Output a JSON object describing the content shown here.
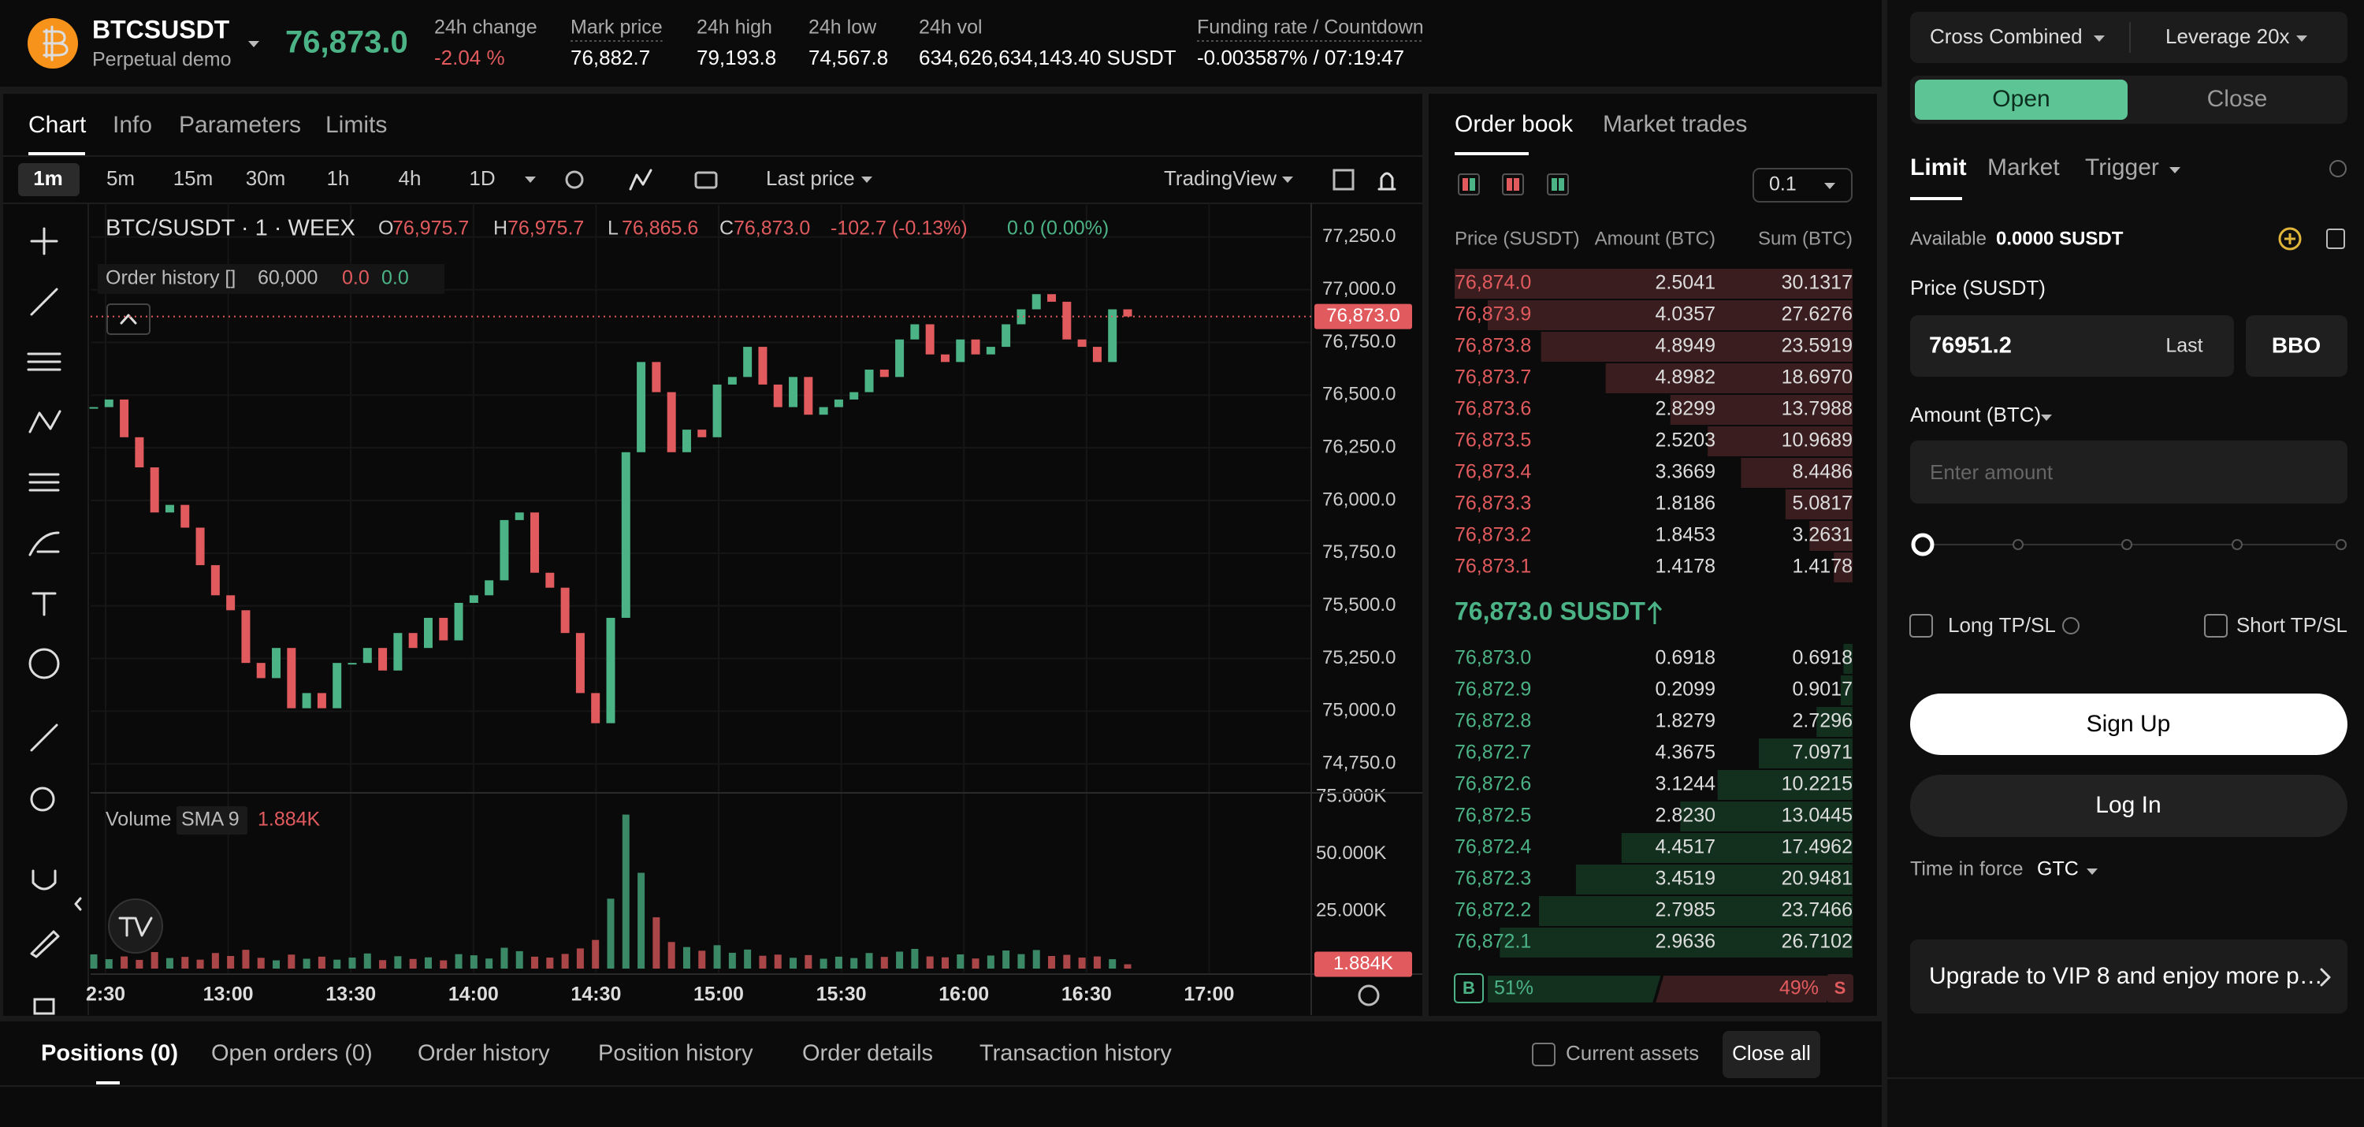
{
  "header": {
    "symbol": "BTCSUSDT",
    "subtitle": "Perpetual demo",
    "price": "76,873.0",
    "stats": [
      {
        "label": "24h change",
        "value": "-2.04 %"
      },
      {
        "label": "Mark price",
        "value": "76,882.7"
      },
      {
        "label": "24h high",
        "value": "79,193.8"
      },
      {
        "label": "24h low",
        "value": "74,567.8"
      },
      {
        "label": "24h vol",
        "value": "634,626,634,143.40 SUSDT"
      },
      {
        "label": "Funding rate / Countdown",
        "value": "-0.003587% / 07:19:47"
      }
    ]
  },
  "chart_tabs": [
    "Chart",
    "Info",
    "Parameters",
    "Limits"
  ],
  "intervals": [
    "1m",
    "5m",
    "15m",
    "30m",
    "1h",
    "4h",
    "1D"
  ],
  "price_type": "Last price",
  "provider": "TradingView",
  "chart": {
    "type": "candlestick",
    "legend": "BTC/SUSDT · 1 · WEEX",
    "ohlc": [
      {
        "label": "O",
        "value": "76,975.7"
      },
      {
        "label": "H",
        "value": "76,975.7"
      },
      {
        "label": "L",
        "value": "76,865.6"
      },
      {
        "label": "C",
        "value": "76,873.0"
      }
    ],
    "change": "-102.7 (-0.13%)",
    "change2": "0.0 (0.00%)",
    "order_history": {
      "label": "Order history []",
      "qty": "60,000",
      "a": "0.0",
      "b": "0.0"
    },
    "volume_legend": {
      "label": "Volume",
      "sma": "SMA 9",
      "value": "1.884K"
    },
    "closes": [
      76443,
      76479,
      76300,
      76157,
      75943,
      75979,
      75871,
      75693,
      75550,
      75479,
      75229,
      75157,
      75300,
      75014,
      75086,
      75014,
      75229,
      75229,
      75300,
      75193,
      75371,
      75300,
      75443,
      75336,
      75514,
      75550,
      75621,
      75907,
      75943,
      75657,
      75586,
      75371,
      75086,
      74943,
      75443,
      76229,
      76657,
      76514,
      76229,
      76336,
      76300,
      76550,
      76586,
      76729,
      76550,
      76443,
      76586,
      76407,
      76443,
      76479,
      76514,
      76621,
      76586,
      76764,
      76836,
      76693,
      76657,
      76764,
      76693,
      76729,
      76836,
      76907,
      76979,
      76943,
      76764,
      76729,
      76657,
      76907,
      76873
    ],
    "volumes": [
      6200,
      4100,
      5300,
      3800,
      7200,
      4600,
      5100,
      3900,
      6800,
      5500,
      8200,
      4700,
      3600,
      6100,
      4300,
      5200,
      3900,
      4800,
      6600,
      3700,
      5400,
      4200,
      4900,
      3600,
      6300,
      5800,
      4400,
      9100,
      7600,
      5200,
      4800,
      6400,
      8800,
      12500,
      30500,
      67200,
      41800,
      22400,
      11600,
      9400,
      7800,
      10200,
      6900,
      8300,
      5600,
      6100,
      4700,
      5900,
      4300,
      5200,
      4600,
      6800,
      5100,
      7400,
      8600,
      5300,
      4900,
      6200,
      4400,
      5700,
      7900,
      6300,
      8100,
      5500,
      6000,
      4800,
      5300,
      4100,
      1884
    ],
    "ylim": [
      74620,
      77410
    ],
    "yticks": [
      {
        "value": 77250,
        "label": "77,250.0"
      },
      {
        "value": 77000,
        "label": "77,000.0"
      },
      {
        "value": 76750,
        "label": "76,750.0"
      },
      {
        "value": 76500,
        "label": "76,500.0"
      },
      {
        "value": 76250,
        "label": "76,250.0"
      },
      {
        "value": 76000,
        "label": "76,000.0"
      },
      {
        "value": 75750,
        "label": "75,750.0"
      },
      {
        "value": 75500,
        "label": "75,500.0"
      },
      {
        "value": 75250,
        "label": "75,250.0"
      },
      {
        "value": 75000,
        "label": "75,000.0"
      },
      {
        "value": 74750,
        "label": "74,750.0"
      }
    ],
    "vlim": [
      0,
      76000
    ],
    "vticks": [
      {
        "value": 75000,
        "label": "75.000K"
      },
      {
        "value": 50000,
        "label": "50.000K"
      },
      {
        "value": 25000,
        "label": "25.000K"
      }
    ],
    "last": {
      "value": 76873,
      "label": "76,873.0"
    },
    "volume_last": {
      "value": 1884,
      "label": "1.884K"
    },
    "time_ticks": [
      "2:30",
      "13:00",
      "13:30",
      "14:00",
      "14:30",
      "15:00",
      "15:30",
      "16:00",
      "16:30",
      "17:00"
    ]
  },
  "order_book": {
    "tabs": [
      "Order book",
      "Market trades"
    ],
    "step": "0.1",
    "columns": [
      "Price (SUSDT)",
      "Amount (BTC)",
      "Sum (BTC)"
    ],
    "asks": {
      "prices": [
        "76,874.0",
        "76,873.9",
        "76,873.8",
        "76,873.7",
        "76,873.6",
        "76,873.5",
        "76,873.4",
        "76,873.3",
        "76,873.2",
        "76,873.1"
      ],
      "amounts": [
        "2.5041",
        "4.0357",
        "4.8949",
        "4.8982",
        "2.8299",
        "2.5203",
        "3.3669",
        "1.8186",
        "1.8453",
        "1.4178"
      ],
      "sums": [
        30.1317,
        27.6276,
        23.5919,
        18.697,
        13.7988,
        10.9689,
        8.4486,
        5.0817,
        3.2631,
        1.4178
      ],
      "sum_labels": [
        "30.1317",
        "27.6276",
        "23.5919",
        "18.6970",
        "13.7988",
        "10.9689",
        "8.4486",
        "5.0817",
        "3.2631",
        "1.4178"
      ]
    },
    "mid": "76,873.0 SUSDT",
    "bids": {
      "prices": [
        "76,873.0",
        "76,872.9",
        "76,872.8",
        "76,872.7",
        "76,872.6",
        "76,872.5",
        "76,872.4",
        "76,872.3",
        "76,872.2",
        "76,872.1"
      ],
      "amounts": [
        "0.6918",
        "0.2099",
        "1.8279",
        "4.3675",
        "3.1244",
        "2.8230",
        "4.4517",
        "3.4519",
        "2.7985",
        "2.9636"
      ],
      "sums": [
        0.6918,
        0.9017,
        2.7296,
        7.0971,
        10.2215,
        13.0445,
        17.4962,
        20.9481,
        23.7466,
        26.7102
      ],
      "sum_labels": [
        "0.6918",
        "0.9017",
        "2.7296",
        "7.0971",
        "10.2215",
        "13.0445",
        "17.4962",
        "20.9481",
        "23.7466",
        "26.7102"
      ]
    },
    "ratio": {
      "buy_label": "B",
      "buy": 51,
      "buy_text": "51%",
      "sell": 49,
      "sell_text": "49%",
      "sell_label": "S"
    }
  },
  "trade_panel": {
    "margin": "Cross Combined",
    "leverage": "Leverage 20x",
    "toggle": [
      "Open",
      "Close"
    ],
    "order_tabs": [
      "Limit",
      "Market",
      "Trigger"
    ],
    "available_label": "Available",
    "available": "0.0000 SUSDT",
    "price_label": "Price (SUSDT)",
    "price_value": "76951.2",
    "last": "Last",
    "bbo": "BBO",
    "amount_label": "Amount (BTC)",
    "amount_placeholder": "Enter amount",
    "long": "Long TP/SL",
    "short": "Short TP/SL",
    "sign_up": "Sign Up",
    "log_in": "Log In",
    "tif_label": "Time in force",
    "tif": "GTC",
    "promo": "Upgrade to VIP 8 and enjoy more p…"
  },
  "bottom": {
    "tabs": [
      "Positions (0)",
      "Open orders (0)",
      "Order history",
      "Position history",
      "Order details",
      "Transaction history"
    ],
    "current_assets": "Current assets",
    "close_all": "Close all"
  }
}
